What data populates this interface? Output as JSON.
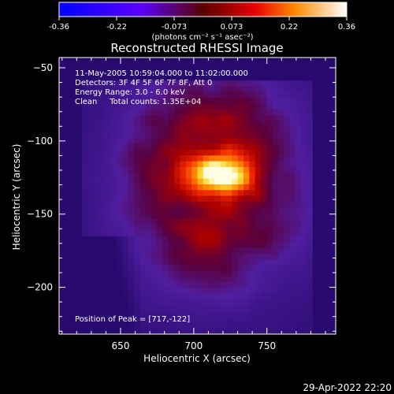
{
  "chart_data": {
    "type": "heatmap",
    "title": "Reconstructed RHESSI Image",
    "xlabel": "Heliocentric X (arcsec)",
    "ylabel": "Heliocentric Y (arcsec)",
    "xlim": [
      608,
      797
    ],
    "ylim": [
      -232,
      -43
    ],
    "x_ticks": [
      650,
      700,
      750
    ],
    "y_ticks": [
      -50,
      -100,
      -150,
      -200
    ],
    "colorbar": {
      "ticks": [
        "-0.36",
        "-0.22",
        "-0.073",
        "0.073",
        "0.22",
        "0.36"
      ],
      "unit_label": "(photons cm⁻² s⁻¹ asec⁻²)",
      "range": [
        -0.36,
        0.36
      ]
    },
    "annotations": [
      "11-May-2005 10:59:04.000 to 11:02:00.000",
      "Detectors: 3F 4F 5F 6F 7F 8F, Att 0",
      "Energy Range: 3.0 - 6.0 keV",
      "Clean     Total counts: 1.35E+04"
    ],
    "peak_label": "Position of Peak = [717,-122]",
    "peak": [
      717,
      -122
    ],
    "footer_date": "29-Apr-2022 22:20"
  }
}
